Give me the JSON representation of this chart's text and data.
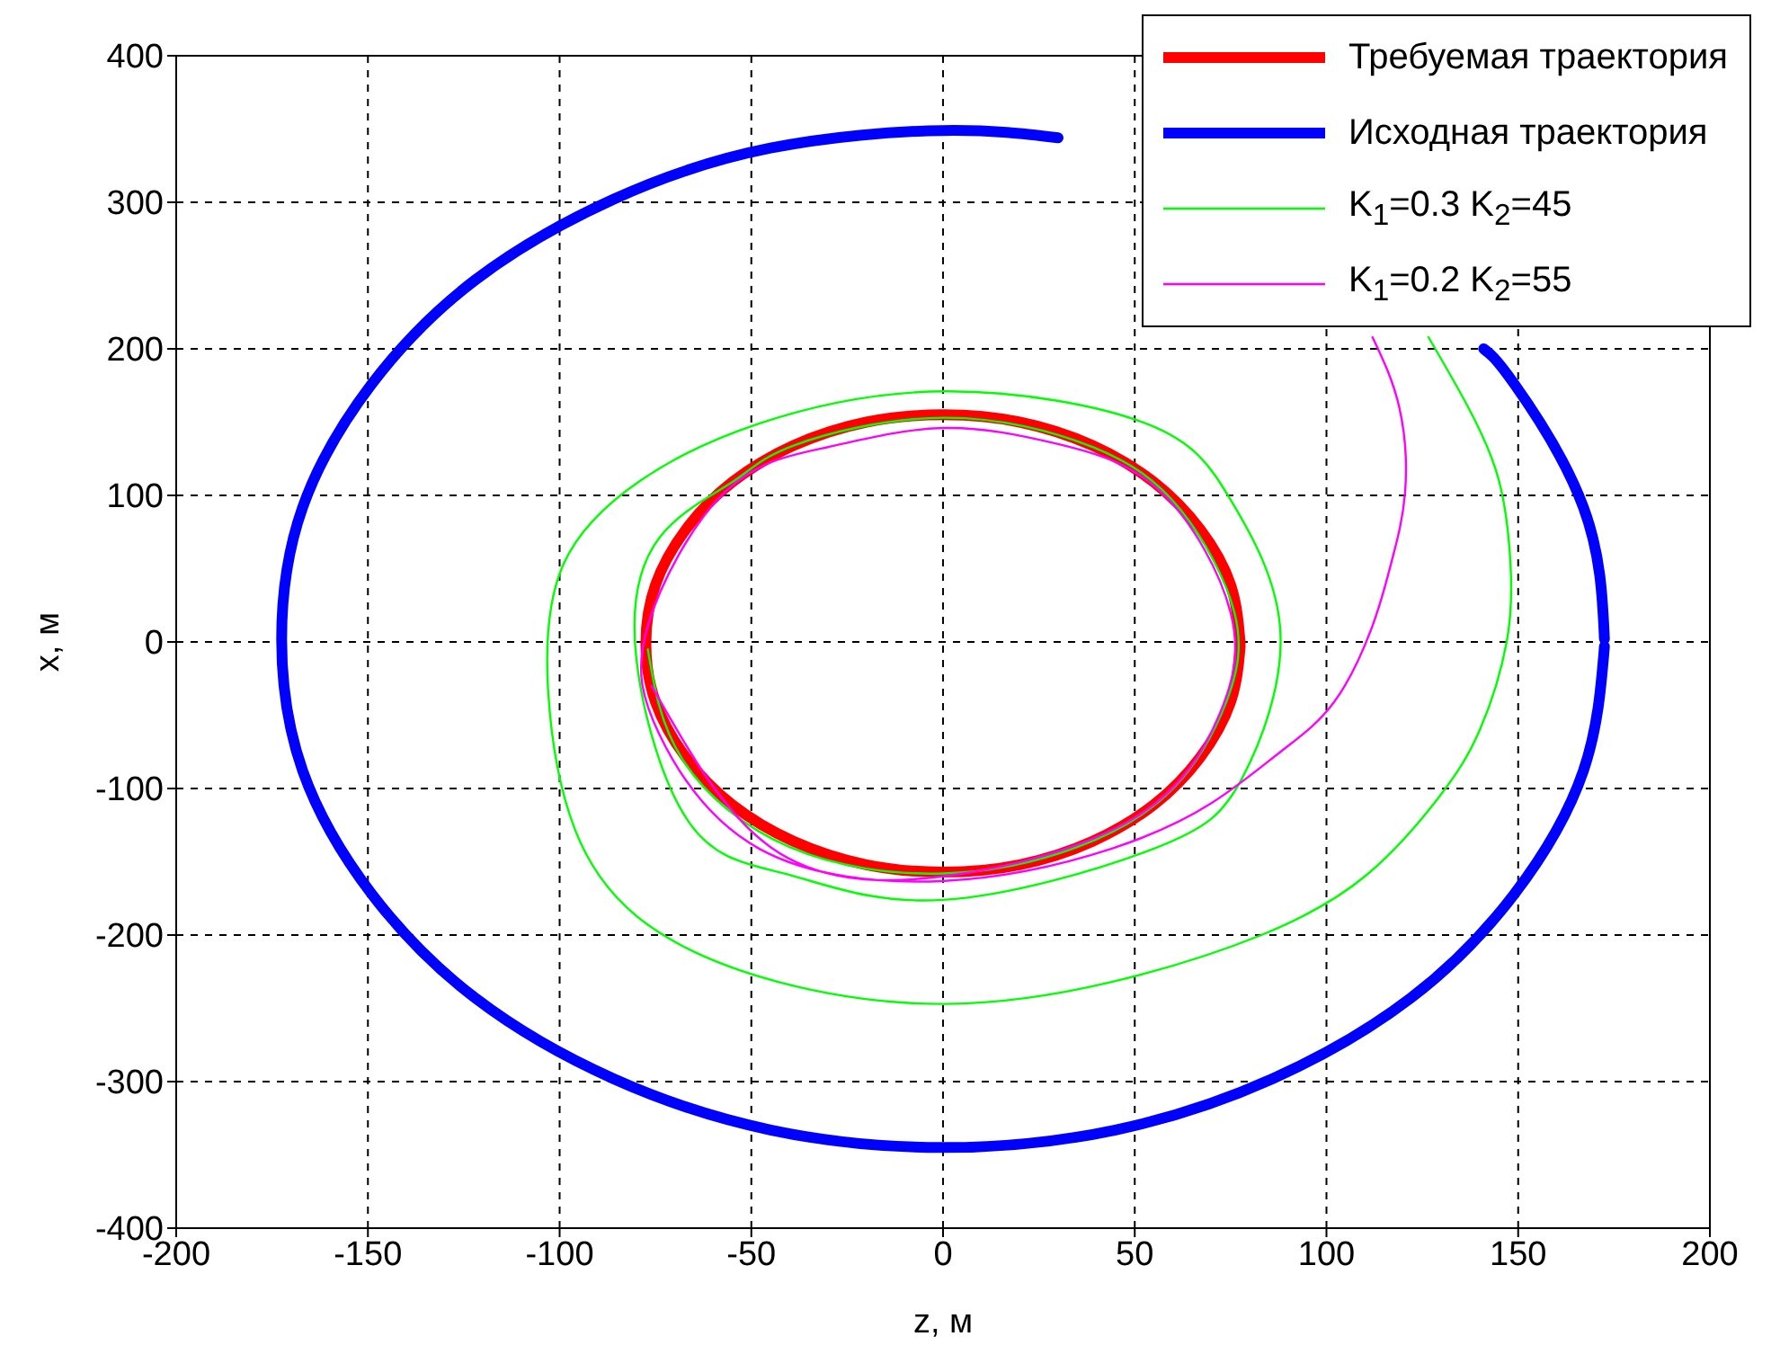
{
  "chart_data": {
    "type": "line",
    "xlabel": "z, м",
    "ylabel": "x, м",
    "xlim": [
      -200,
      200
    ],
    "ylim": [
      -400,
      400
    ],
    "xticks": [
      -200,
      -150,
      -100,
      -50,
      0,
      50,
      100,
      150,
      200
    ],
    "yticks": [
      -400,
      -300,
      -200,
      -100,
      0,
      100,
      200,
      300,
      400
    ],
    "grid": true,
    "legend": "top right",
    "marker": "none",
    "line_style": "solid",
    "series": [
      {
        "name": "Требуемая траектория",
        "color": "#ff0000",
        "x": [
          77.5,
          75,
          67,
          55,
          39,
          20,
          0,
          -20,
          -39,
          -55,
          -67,
          -75,
          -77.5,
          -75,
          -67,
          -55,
          -39,
          -20,
          0,
          20,
          39,
          55,
          67,
          75,
          77.5
        ],
        "values": [
          -1,
          39,
          77,
          109,
          134,
          150,
          155,
          150,
          134,
          109,
          77,
          39,
          -1,
          -41,
          -79,
          -111,
          -136,
          -152,
          -157,
          -152,
          -136,
          -111,
          -79,
          -41,
          -3
        ]
      },
      {
        "name": "Исходная траектория",
        "color": "#0000ff",
        "x": [
          172.5,
          167,
          149,
          141,
          86,
          30,
          0,
          -45,
          -86,
          -122,
          -149,
          -167,
          -172.5,
          -167,
          -149,
          -122,
          -86,
          -45,
          0,
          45,
          86,
          122,
          149,
          167,
          172.5
        ],
        "values": [
          2,
          92,
          176,
          200,
          null,
          344,
          349,
          337,
          302,
          247,
          176,
          92,
          2,
          -88,
          -172,
          -243,
          -298,
          -333,
          -345,
          -333,
          -298,
          -243,
          -172,
          -88,
          -3
        ]
      },
      {
        "name": "K$_{1}$=0.3 K$_{2}$=45",
        "color": "#00ff00",
        "x": [
          126.6,
          137,
          145,
          148,
          147,
          140,
          129,
          110,
          83,
          44,
          0.5,
          -43,
          -77,
          -96,
          -103,
          -99,
          -79,
          -48,
          0.5,
          53,
          75,
          88,
          78,
          55,
          0,
          -40,
          -66,
          -80,
          -74,
          -55,
          -39,
          0,
          39,
          62,
          76,
          74,
          60,
          35,
          0,
          -40,
          -68,
          -77
        ],
        "values": [
          208,
          160,
          110,
          53,
          0,
          -60,
          -107,
          -160,
          -200,
          -232,
          -247,
          -232,
          -193,
          -128,
          -33,
          53,
          110,
          149,
          171,
          149,
          97,
          6,
          -93,
          -141,
          -176,
          -159,
          -124,
          -11,
          71,
          109,
          134,
          153,
          133,
          90,
          20,
          -40,
          -100,
          -140,
          -158,
          -140,
          -80,
          -5
        ]
      },
      {
        "name": "K$_{1}$=0.2 K$_{2}$=55",
        "color": "#ff00ff",
        "x": [
          112,
          119,
          120.5,
          117,
          112,
          102,
          88,
          70,
          44,
          0.5,
          -48,
          -74,
          -77,
          -57,
          -30,
          0,
          30,
          57,
          75,
          72,
          50,
          0,
          -45,
          -76
        ],
        "values": [
          208,
          160,
          102,
          55,
          11,
          -41,
          -75,
          -110,
          -141,
          -163,
          -141,
          -63,
          11,
          102,
          133,
          146,
          135,
          102,
          20,
          -50,
          -120,
          -160,
          -140,
          -30
        ]
      }
    ]
  }
}
